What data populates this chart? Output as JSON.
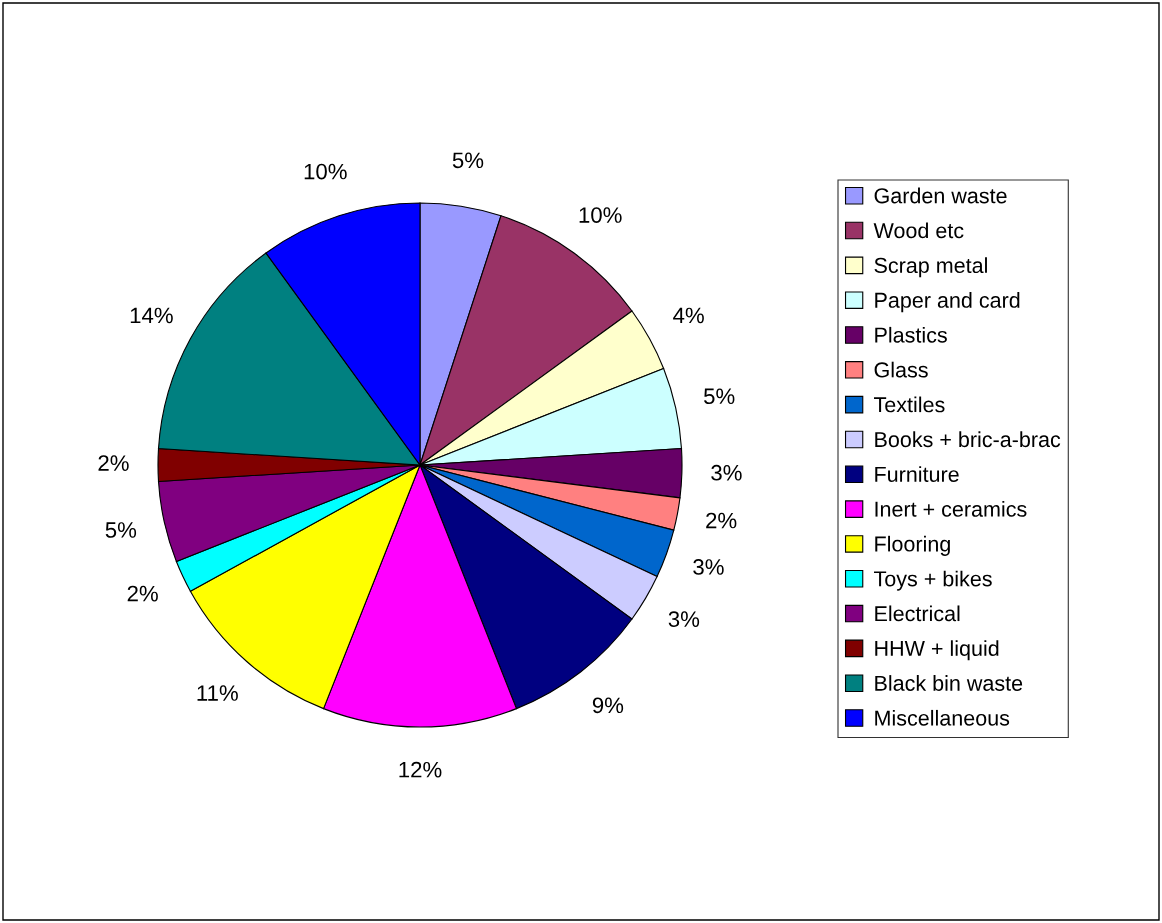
{
  "chart_data": {
    "type": "pie",
    "categories": [
      "Garden waste",
      "Wood etc",
      "Scrap metal",
      "Paper and card",
      "Plastics",
      "Glass",
      "Textiles",
      "Books + bric-a-brac",
      "Furniture",
      "Inert + ceramics",
      "Flooring",
      "Toys + bikes",
      "Electrical",
      "HHW + liquid",
      "Black bin waste",
      "Miscellaneous"
    ],
    "values": [
      5,
      10,
      4,
      5,
      3,
      2,
      3,
      3,
      9,
      12,
      11,
      2,
      5,
      2,
      14,
      10
    ],
    "value_labels": [
      "5%",
      "10%",
      "4%",
      "5%",
      "3%",
      "2%",
      "3%",
      "3%",
      "9%",
      "12%",
      "11%",
      "2%",
      "5%",
      "2%",
      "14%",
      "10%"
    ],
    "colors": [
      "#9999ff",
      "#993366",
      "#ffffcc",
      "#ccffff",
      "#660066",
      "#ff8080",
      "#0066cc",
      "#ccccff",
      "#000080",
      "#ff00ff",
      "#ffff00",
      "#00ffff",
      "#800080",
      "#800000",
      "#008080",
      "#0000ff"
    ],
    "legend": "right"
  }
}
